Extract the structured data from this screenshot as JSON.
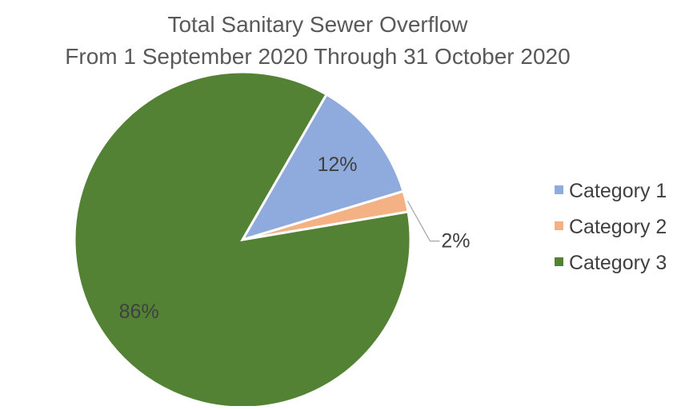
{
  "chart_data": {
    "type": "pie",
    "title_lines": [
      "Total Sanitary Sewer Overflow",
      "From 1 September 2020 Through 31 October 2020"
    ],
    "categories": [
      "Category 1",
      "Category 2",
      "Category 3"
    ],
    "values": [
      12,
      2,
      86
    ],
    "data_labels": [
      "12%",
      "2%",
      "86%"
    ],
    "colors": [
      "#8faadc",
      "#f4b183",
      "#548235"
    ],
    "legend_position": "right"
  }
}
